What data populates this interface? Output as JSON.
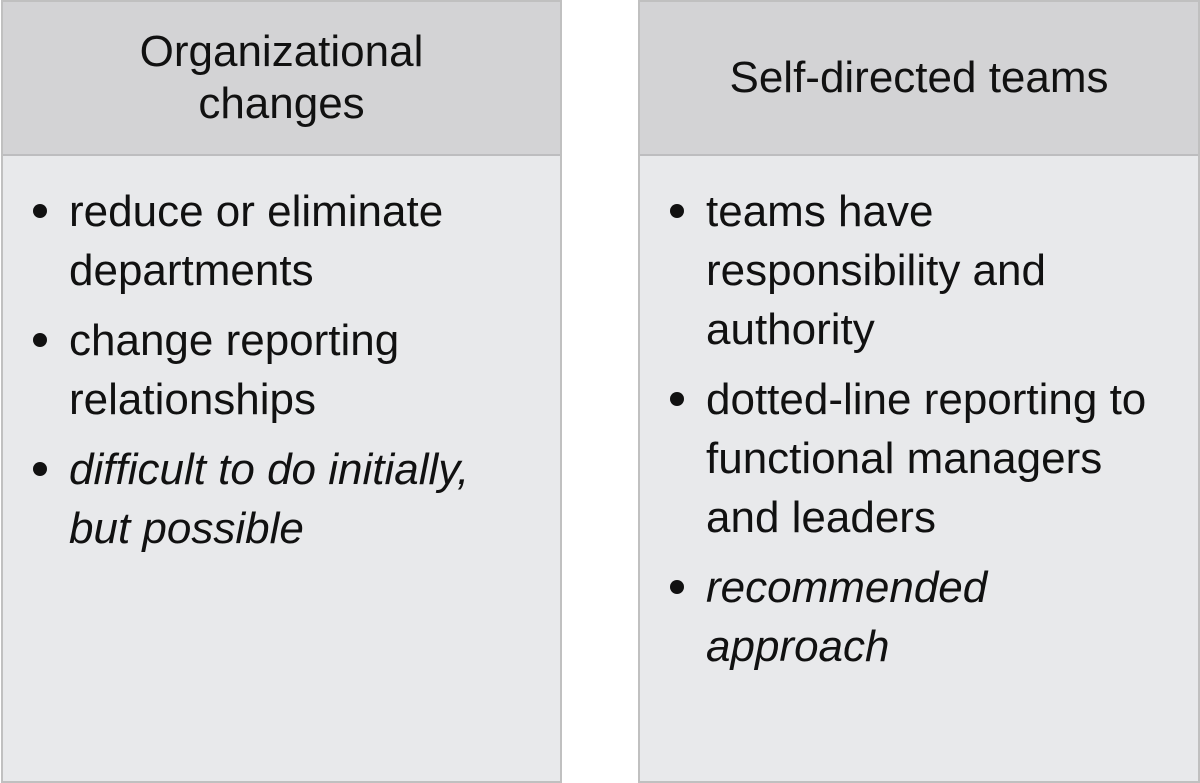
{
  "columns": [
    {
      "title": "Organizational changes",
      "items": [
        {
          "text": "reduce or eliminate departments",
          "emphasis": false
        },
        {
          "text": "change reporting relationships",
          "emphasis": false
        },
        {
          "text": "difficult to do initially, but possible",
          "emphasis": true
        }
      ]
    },
    {
      "title": "Self-directed teams",
      "items": [
        {
          "text": "teams have responsibility and authority",
          "emphasis": false
        },
        {
          "text": "dotted-line reporting to functional managers and leaders",
          "emphasis": false
        },
        {
          "text": "recommended approach",
          "emphasis": true
        }
      ]
    }
  ],
  "colors": {
    "header_fill": "#d3d3d5",
    "body_fill": "#e8e9eb",
    "border": "#c0c0c0",
    "text": "#111111"
  }
}
